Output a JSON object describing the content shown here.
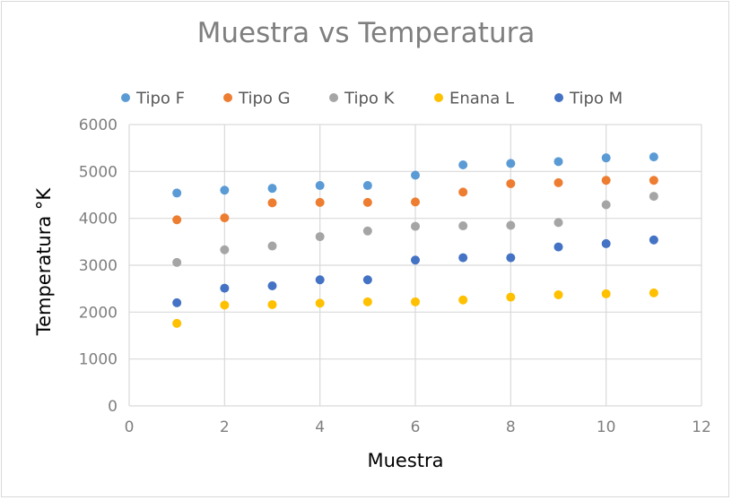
{
  "chart_data": {
    "type": "scatter",
    "title": "Muestra vs Temperatura",
    "xlabel": "Muestra",
    "ylabel": "Temperatura °K",
    "xlim": [
      0,
      12
    ],
    "ylim": [
      0,
      6000
    ],
    "x_ticks": [
      0,
      2,
      4,
      6,
      8,
      10,
      12
    ],
    "y_ticks": [
      0,
      1000,
      2000,
      3000,
      4000,
      5000,
      6000
    ],
    "grid": true,
    "legend_position": "top",
    "x": [
      1,
      2,
      3,
      4,
      5,
      6,
      7,
      8,
      9,
      10,
      11
    ],
    "series": [
      {
        "name": "Tipo F",
        "color": "#5b9bd5",
        "values": [
          4540,
          4600,
          4640,
          4700,
          4700,
          4920,
          5140,
          5170,
          5210,
          5290,
          5310
        ]
      },
      {
        "name": "Tipo G",
        "color": "#ed7d31",
        "values": [
          3970,
          4010,
          4330,
          4340,
          4340,
          4350,
          4560,
          4740,
          4760,
          4810,
          4810
        ]
      },
      {
        "name": "Tipo K",
        "color": "#a5a5a5",
        "values": [
          3060,
          3330,
          3410,
          3610,
          3730,
          3830,
          3840,
          3850,
          3910,
          4290,
          4470
        ]
      },
      {
        "name": "Enana L",
        "color": "#ffc000",
        "values": [
          1760,
          2150,
          2160,
          2190,
          2220,
          2220,
          2260,
          2320,
          2370,
          2390,
          2410
        ]
      },
      {
        "name": "Tipo M",
        "color": "#4472c4",
        "values": [
          2200,
          2510,
          2560,
          2690,
          2690,
          3110,
          3160,
          3160,
          3390,
          3460,
          3540
        ]
      }
    ]
  }
}
